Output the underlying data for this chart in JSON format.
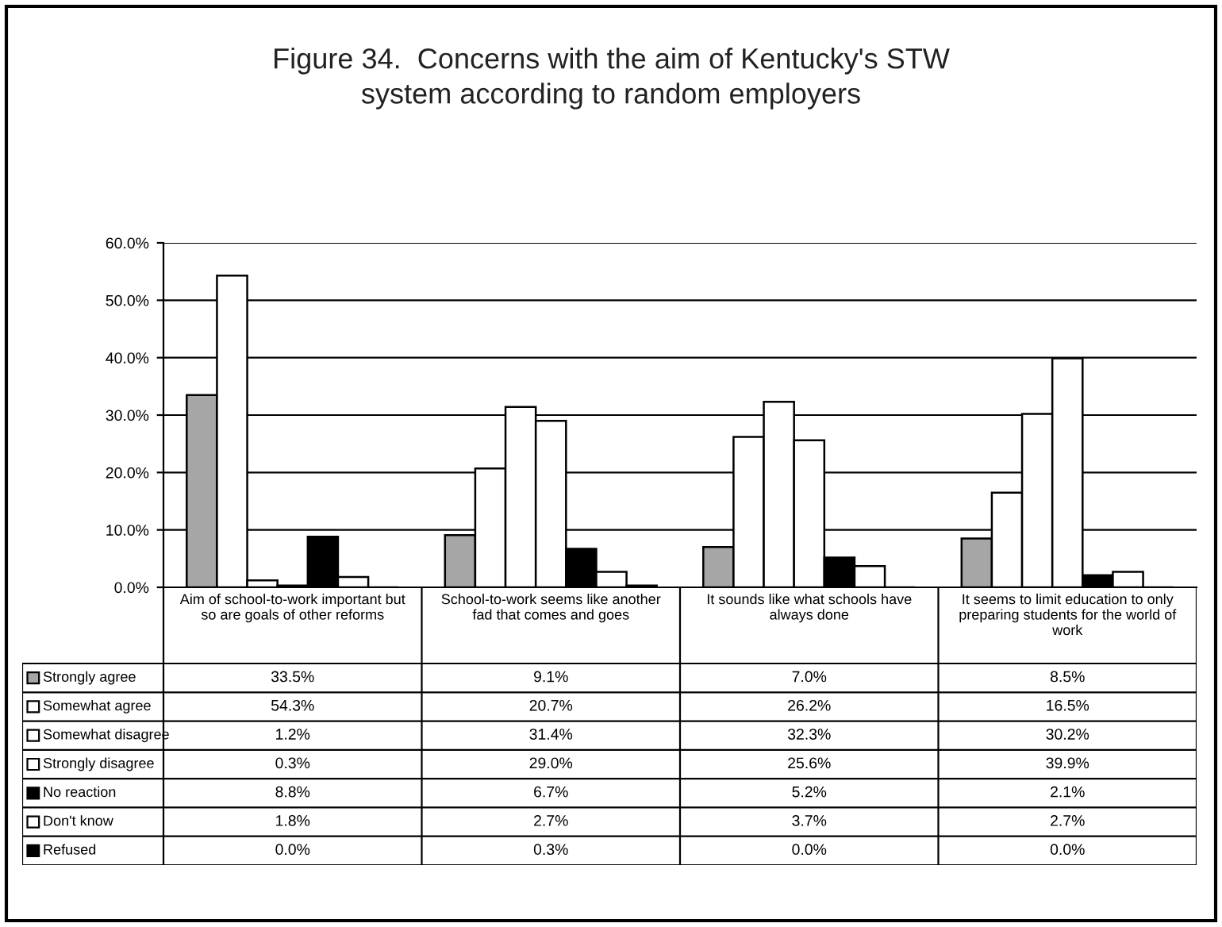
{
  "chart_data": {
    "type": "bar",
    "title": "Figure 34.  Concerns with the aim of Kentucky's STW\nsystem according to random employers",
    "categories": [
      "Aim of school-to-work important but so are goals of other reforms",
      "School-to-work seems like another fad that comes and goes",
      "It sounds like what schools have always done",
      "It seems to limit education to only preparing students for the world of work"
    ],
    "series": [
      {
        "name": "Strongly agree",
        "color": "#a6a6a6",
        "values": [
          33.5,
          9.1,
          7.0,
          8.5
        ],
        "value_labels": [
          "33.5%",
          "9.1%",
          "7.0%",
          "8.5%"
        ]
      },
      {
        "name": "Somewhat agree",
        "color": "#ffffff",
        "values": [
          54.3,
          20.7,
          26.2,
          16.5
        ],
        "value_labels": [
          "54.3%",
          "20.7%",
          "26.2%",
          "16.5%"
        ]
      },
      {
        "name": "Somewhat disagree",
        "color": "#ffffff",
        "values": [
          1.2,
          31.4,
          32.3,
          30.2
        ],
        "value_labels": [
          "1.2%",
          "31.4%",
          "32.3%",
          "30.2%"
        ]
      },
      {
        "name": "Strongly disagree",
        "color": "#ffffff",
        "values": [
          0.3,
          29.0,
          25.6,
          39.9
        ],
        "value_labels": [
          "0.3%",
          "29.0%",
          "25.6%",
          "39.9%"
        ]
      },
      {
        "name": "No reaction",
        "color": "#000000",
        "values": [
          8.8,
          6.7,
          5.2,
          2.1
        ],
        "value_labels": [
          "8.8%",
          "6.7%",
          "5.2%",
          "2.1%"
        ]
      },
      {
        "name": "Don't know",
        "color": "#ffffff",
        "values": [
          1.8,
          2.7,
          3.7,
          2.7
        ],
        "value_labels": [
          "1.8%",
          "2.7%",
          "3.7%",
          "2.7%"
        ]
      },
      {
        "name": "Refused",
        "color": "#000000",
        "values": [
          0.0,
          0.3,
          0.0,
          0.0
        ],
        "value_labels": [
          "0.0%",
          "0.3%",
          "0.0%",
          "0.0%"
        ]
      }
    ],
    "ylim": [
      0,
      60
    ],
    "yticks": [
      {
        "value": 0,
        "label": "0.0%"
      },
      {
        "value": 10,
        "label": "10.0%"
      },
      {
        "value": 20,
        "label": "20.0%"
      },
      {
        "value": 30,
        "label": "30.0%"
      },
      {
        "value": 40,
        "label": "40.0%"
      },
      {
        "value": 50,
        "label": "50.0%"
      },
      {
        "value": 60,
        "label": "60.0%"
      }
    ],
    "grid": "y",
    "legend": "bottom"
  }
}
